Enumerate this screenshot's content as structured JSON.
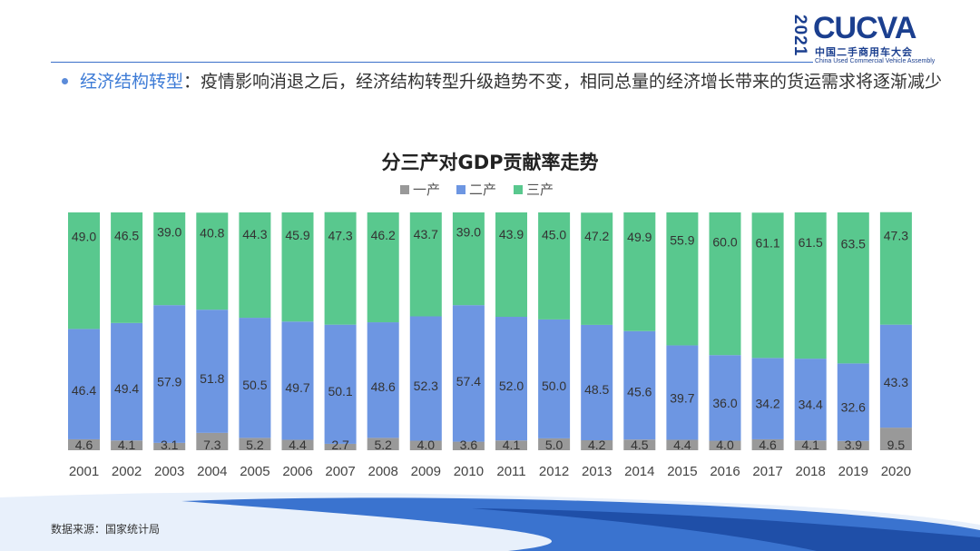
{
  "logo": {
    "year": "2021",
    "brand": "CUCVA",
    "cn_name": "中国二手商用车大会",
    "en_name": "China Used Commercial Vehicle Assembly"
  },
  "bullet": {
    "key": "经济结构转型",
    "text": "：疫情影响消退之后，经济结构转型升级趋势不变，相同总量的经济增长带来的货运需求将逐渐减少"
  },
  "source": "数据来源：国家统计局",
  "colors": {
    "primary": "#999999",
    "secondary": "#6d96e2",
    "tertiary": "#59c88e"
  },
  "chart_data": {
    "type": "bar",
    "stacked": true,
    "normalized": true,
    "title": "分三产对GDP贡献率走势",
    "legend_position": "top",
    "xlabel": "",
    "ylabel": "",
    "ylim": [
      0,
      100
    ],
    "categories": [
      "2001",
      "2002",
      "2003",
      "2004",
      "2005",
      "2006",
      "2007",
      "2008",
      "2009",
      "2010",
      "2011",
      "2012",
      "2013",
      "2014",
      "2015",
      "2016",
      "2017",
      "2018",
      "2019",
      "2020"
    ],
    "series": [
      {
        "name": "一产",
        "values": [
          4.6,
          4.1,
          3.1,
          7.3,
          5.2,
          4.4,
          2.7,
          5.2,
          4.0,
          3.6,
          4.1,
          5.0,
          4.2,
          4.5,
          4.4,
          4.0,
          4.6,
          4.1,
          3.9,
          9.5
        ]
      },
      {
        "name": "二产",
        "values": [
          46.4,
          49.4,
          57.9,
          51.8,
          50.5,
          49.7,
          50.1,
          48.6,
          52.3,
          57.4,
          52.0,
          50.0,
          48.5,
          45.6,
          39.7,
          36.0,
          34.2,
          34.4,
          32.6,
          43.3
        ]
      },
      {
        "name": "三产",
        "values": [
          49.0,
          46.5,
          39.0,
          40.8,
          44.3,
          45.9,
          47.3,
          46.2,
          43.7,
          39.0,
          43.9,
          45.0,
          47.2,
          49.9,
          55.9,
          60.0,
          61.1,
          61.5,
          63.5,
          47.3
        ]
      }
    ]
  }
}
